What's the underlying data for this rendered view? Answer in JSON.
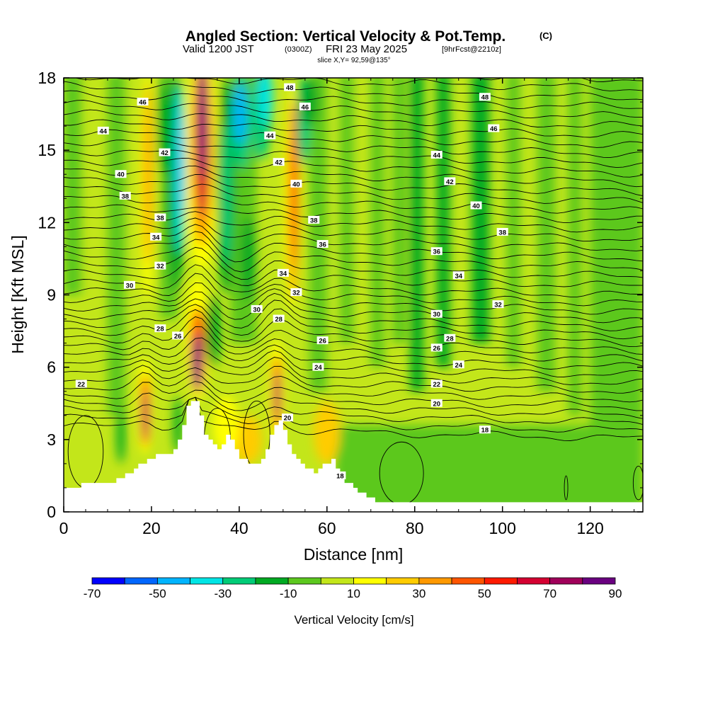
{
  "header": {
    "title_main": "Angled Section: Vertical Velocity & Pot.Temp.",
    "title_copyright": "(C)",
    "valid_prefix": "Valid 1200 JST",
    "valid_zulu": "(0300Z)",
    "valid_date": "FRI 23 May 2025",
    "forecast": "[9hrFcst@2210z]",
    "slice": "slice X,Y= 92,59@135°"
  },
  "chart_data": {
    "type": "heatmap",
    "xlabel": "Distance [nm]",
    "ylabel": "Height [Kft MSL]",
    "xlim": [
      0,
      132
    ],
    "ylim": [
      0,
      18
    ],
    "x_ticks": [
      0,
      20,
      40,
      60,
      80,
      100,
      120
    ],
    "y_ticks": [
      0,
      3,
      6,
      9,
      12,
      15,
      18
    ],
    "colorbar": {
      "label": "Vertical Velocity [cm/s]",
      "min": -70,
      "max": 90,
      "step": 10,
      "tick_labels": [
        "-70",
        "-50",
        "-30",
        "-10",
        "10",
        "30",
        "50",
        "70",
        "90"
      ],
      "colors": [
        "#0000ff",
        "#0066ff",
        "#00b4ff",
        "#00e5e5",
        "#00cc77",
        "#00aa22",
        "#5cc81e",
        "#c3e61a",
        "#ffff00",
        "#ffcc00",
        "#ff9900",
        "#ff5500",
        "#ff1a00",
        "#d40031",
        "#a0005a",
        "#6a0080"
      ]
    },
    "terrain_profile": [
      [
        0,
        1.0
      ],
      [
        2,
        1.0
      ],
      [
        6,
        1.2
      ],
      [
        10,
        1.2
      ],
      [
        13,
        1.4
      ],
      [
        15,
        1.6
      ],
      [
        17,
        1.9
      ],
      [
        19,
        2.2
      ],
      [
        21,
        2.3
      ],
      [
        23,
        2.3
      ],
      [
        25,
        2.6
      ],
      [
        26,
        3.0
      ],
      [
        27,
        3.6
      ],
      [
        28,
        4.4
      ],
      [
        29,
        4.6
      ],
      [
        30,
        4.6
      ],
      [
        31,
        4.0
      ],
      [
        32,
        3.2
      ],
      [
        33,
        3.0
      ],
      [
        35,
        2.6
      ],
      [
        36,
        2.8
      ],
      [
        37,
        3.2
      ],
      [
        38,
        3.0
      ],
      [
        39,
        2.5
      ],
      [
        40,
        2.2
      ],
      [
        42,
        2.0
      ],
      [
        44,
        2.0
      ],
      [
        45,
        2.2
      ],
      [
        46,
        2.6
      ],
      [
        47,
        3.2
      ],
      [
        48,
        3.6
      ],
      [
        49,
        3.8
      ],
      [
        50,
        3.4
      ],
      [
        51,
        2.8
      ],
      [
        52,
        2.4
      ],
      [
        53,
        2.1
      ],
      [
        55,
        1.8
      ],
      [
        57,
        1.6
      ],
      [
        59,
        1.9
      ],
      [
        61,
        2.1
      ],
      [
        62,
        1.7
      ],
      [
        64,
        1.2
      ],
      [
        66,
        1.0
      ],
      [
        68,
        0.7
      ],
      [
        70,
        0.5
      ],
      [
        72,
        0.3
      ],
      [
        132,
        0.3
      ]
    ],
    "updraft_cores": [
      {
        "x": 30.5,
        "y": 6.0,
        "value": 85
      },
      {
        "x": 31.5,
        "y": 16.5,
        "value": 80
      },
      {
        "x": 18.5,
        "y": 4.0,
        "value": 70
      },
      {
        "x": 48.5,
        "y": 4.6,
        "value": 70
      },
      {
        "x": 52.0,
        "y": 13.0,
        "value": 50
      },
      {
        "x": 19.0,
        "y": 14.0,
        "value": 30
      }
    ],
    "downdraft_cores": [
      {
        "x": 26.5,
        "y": 14.0,
        "value": -50
      },
      {
        "x": 40.0,
        "y": 16.0,
        "value": -50
      },
      {
        "x": 36.0,
        "y": 12.5,
        "value": -30
      },
      {
        "x": 22.5,
        "y": 16.0,
        "value": -20
      }
    ],
    "isentrope_labels": [
      {
        "text": "48",
        "x": 51.5,
        "y": 17.6
      },
      {
        "text": "48",
        "x": 96,
        "y": 17.2
      },
      {
        "text": "46",
        "x": 18,
        "y": 17.0
      },
      {
        "text": "46",
        "x": 55,
        "y": 16.8
      },
      {
        "text": "46",
        "x": 98,
        "y": 15.9
      },
      {
        "text": "44",
        "x": 9,
        "y": 15.8
      },
      {
        "text": "44",
        "x": 47,
        "y": 15.6
      },
      {
        "text": "44",
        "x": 85,
        "y": 14.8
      },
      {
        "text": "42",
        "x": 23,
        "y": 14.9
      },
      {
        "text": "42",
        "x": 49,
        "y": 14.5
      },
      {
        "text": "42",
        "x": 88,
        "y": 13.7
      },
      {
        "text": "40",
        "x": 13,
        "y": 14.0
      },
      {
        "text": "40",
        "x": 53,
        "y": 13.6
      },
      {
        "text": "40",
        "x": 94,
        "y": 12.7
      },
      {
        "text": "38",
        "x": 14,
        "y": 13.1
      },
      {
        "text": "38",
        "x": 22,
        "y": 12.2
      },
      {
        "text": "38",
        "x": 57,
        "y": 12.1
      },
      {
        "text": "38",
        "x": 100,
        "y": 11.6
      },
      {
        "text": "36",
        "x": 59,
        "y": 11.1
      },
      {
        "text": "36",
        "x": 85,
        "y": 10.8
      },
      {
        "text": "34",
        "x": 21,
        "y": 11.4
      },
      {
        "text": "34",
        "x": 50,
        "y": 9.9
      },
      {
        "text": "34",
        "x": 90,
        "y": 9.8
      },
      {
        "text": "32",
        "x": 22,
        "y": 10.2
      },
      {
        "text": "32",
        "x": 53,
        "y": 9.1
      },
      {
        "text": "32",
        "x": 99,
        "y": 8.6
      },
      {
        "text": "30",
        "x": 15,
        "y": 9.4
      },
      {
        "text": "30",
        "x": 44,
        "y": 8.4
      },
      {
        "text": "30",
        "x": 85,
        "y": 8.2
      },
      {
        "text": "28",
        "x": 22,
        "y": 7.6
      },
      {
        "text": "28",
        "x": 49,
        "y": 8.0
      },
      {
        "text": "28",
        "x": 88,
        "y": 7.2
      },
      {
        "text": "26",
        "x": 26,
        "y": 7.3
      },
      {
        "text": "26",
        "x": 59,
        "y": 7.1
      },
      {
        "text": "26",
        "x": 85,
        "y": 6.8
      },
      {
        "text": "24",
        "x": 58,
        "y": 6.0
      },
      {
        "text": "24",
        "x": 90,
        "y": 6.1
      },
      {
        "text": "22",
        "x": 4,
        "y": 5.3
      },
      {
        "text": "22",
        "x": 85,
        "y": 5.3
      },
      {
        "text": "20",
        "x": 51,
        "y": 3.9
      },
      {
        "text": "20",
        "x": 85,
        "y": 4.5
      },
      {
        "text": "18",
        "x": 96,
        "y": 3.4
      },
      {
        "text": "18",
        "x": 63,
        "y": 1.5
      }
    ]
  }
}
